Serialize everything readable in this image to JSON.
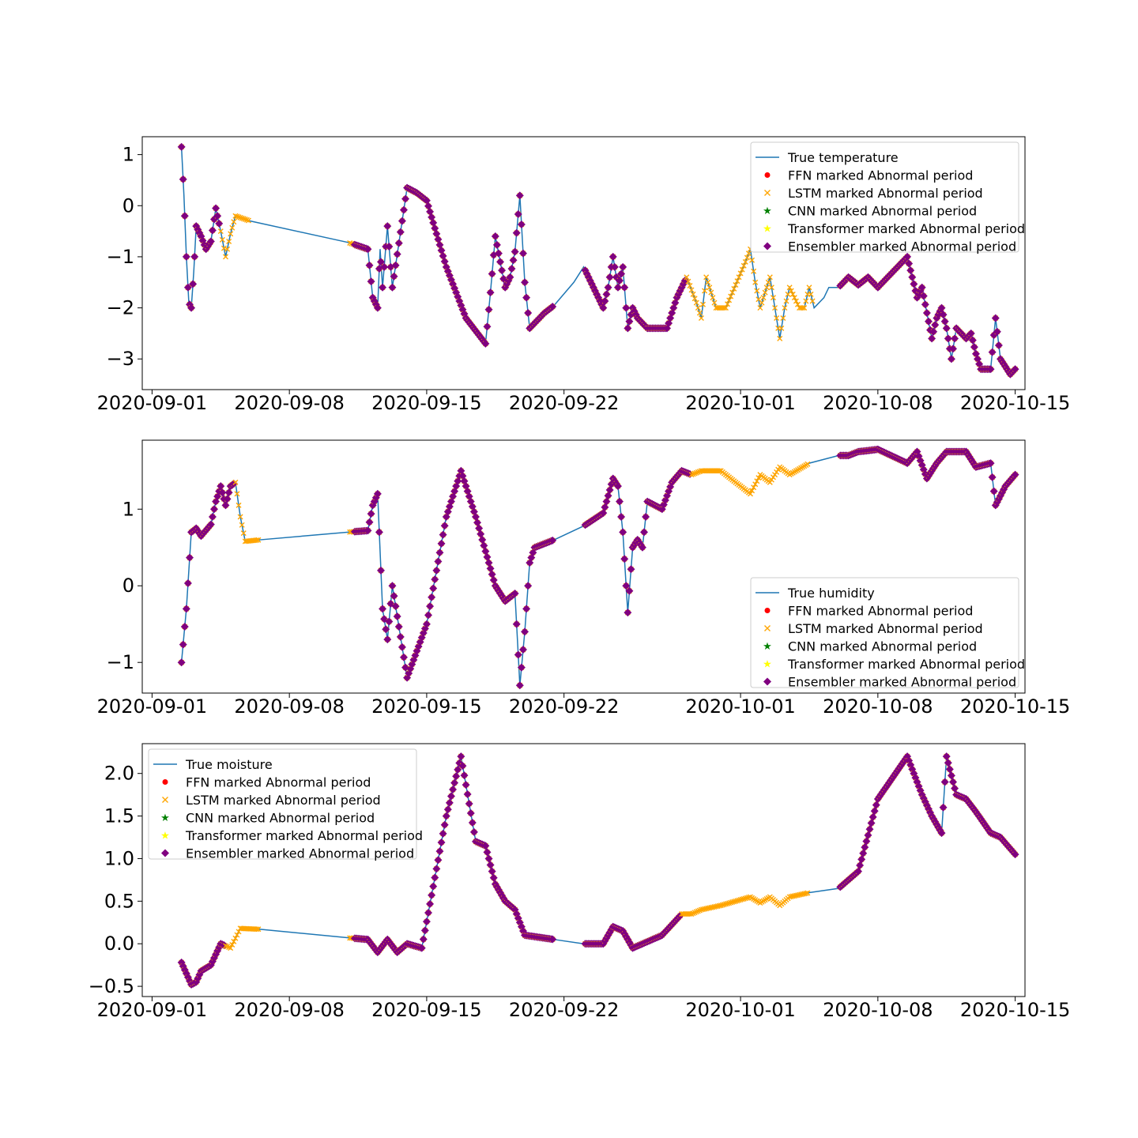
{
  "x_ticks": [
    "2020-09-01",
    "2020-09-08",
    "2020-09-15",
    "2020-09-22",
    "2020-10-01",
    "2020-10-08",
    "2020-10-15"
  ],
  "colors": {
    "true_line": "#1f77b4",
    "ffn": "#ff0000",
    "lstm": "#ffa500",
    "cnn": "#008000",
    "transformer": "#ffff00",
    "ensembler": "#800080"
  },
  "legend_labels": {
    "ffn": "FFN marked Abnormal period",
    "lstm": "LSTM marked Abnormal period",
    "cnn": "CNN marked Abnormal period",
    "transformer": "Transformer marked Abnormal period",
    "ensembler": "Ensembler marked Abnormal period"
  },
  "chart_data": [
    {
      "type": "line",
      "title": "",
      "xlabel": "",
      "ylabel": "",
      "true_label": "True temperature",
      "legend_position": "upper-right",
      "xlim": [
        "2020-08-31T12:00",
        "2020-10-15T12:00"
      ],
      "ylim": [
        -3.6,
        1.35
      ],
      "yticks": [
        "1",
        "0",
        "−1",
        "−2",
        "−3"
      ],
      "ytick_values": [
        1,
        0,
        -1,
        -2,
        -3
      ],
      "series_points": [
        [
          "2020-09-02T12:00",
          1.15
        ],
        [
          "2020-09-02T15:00",
          0.2
        ],
        [
          "2020-09-02T18:00",
          -1.0
        ],
        [
          "2020-09-02T21:00",
          -1.9
        ],
        [
          "2020-09-03T00:00",
          -2.0
        ],
        [
          "2020-09-03T03:00",
          -1.3
        ],
        [
          "2020-09-03T06:00",
          -0.4
        ],
        [
          "2020-09-03T12:00",
          -0.6
        ],
        [
          "2020-09-03T18:00",
          -0.85
        ],
        [
          "2020-09-04T00:00",
          -0.7
        ],
        [
          "2020-09-04T06:00",
          -0.05
        ],
        [
          "2020-09-04T12:00",
          -0.5
        ],
        [
          "2020-09-04T18:00",
          -1.0
        ],
        [
          "2020-09-05T00:00",
          -0.55
        ],
        [
          "2020-09-05T06:00",
          -0.2
        ],
        [
          "2020-09-06T00:00",
          -0.3
        ],
        [
          "2020-09-11T00:00",
          -0.72
        ],
        [
          "2020-09-12T00:00",
          -0.85
        ],
        [
          "2020-09-12T06:00",
          -1.8
        ],
        [
          "2020-09-12T12:00",
          -2.0
        ],
        [
          "2020-09-12T15:00",
          -0.85
        ],
        [
          "2020-09-12T18:00",
          -1.6
        ],
        [
          "2020-09-13T00:00",
          -0.4
        ],
        [
          "2020-09-13T06:00",
          -1.6
        ],
        [
          "2020-09-14T00:00",
          0.35
        ],
        [
          "2020-09-14T12:00",
          0.25
        ],
        [
          "2020-09-15T00:00",
          0.1
        ],
        [
          "2020-09-16T00:00",
          -1.2
        ],
        [
          "2020-09-17T00:00",
          -2.2
        ],
        [
          "2020-09-18T00:00",
          -2.7
        ],
        [
          "2020-09-18T06:00",
          -1.7
        ],
        [
          "2020-09-18T12:00",
          -0.6
        ],
        [
          "2020-09-19T00:00",
          -1.6
        ],
        [
          "2020-09-19T06:00",
          -1.4
        ],
        [
          "2020-09-19T12:00",
          -0.9
        ],
        [
          "2020-09-19T18:00",
          0.2
        ],
        [
          "2020-09-20T00:00",
          -1.5
        ],
        [
          "2020-09-20T06:00",
          -2.4
        ],
        [
          "2020-09-21T00:00",
          -2.1
        ],
        [
          "2020-09-21T12:00",
          -1.95
        ],
        [
          "2020-09-22T12:00",
          -1.5
        ],
        [
          "2020-09-23T00:00",
          -1.2
        ],
        [
          "2020-09-24T00:00",
          -2.0
        ],
        [
          "2020-09-24T06:00",
          -1.6
        ],
        [
          "2020-09-24T12:00",
          -1.0
        ],
        [
          "2020-09-24T18:00",
          -1.6
        ],
        [
          "2020-09-25T00:00",
          -1.2
        ],
        [
          "2020-09-25T06:00",
          -2.4
        ],
        [
          "2020-09-25T12:00",
          -2.0
        ],
        [
          "2020-09-25T18:00",
          -2.2
        ],
        [
          "2020-09-26T06:00",
          -2.4
        ],
        [
          "2020-09-27T06:00",
          -2.4
        ],
        [
          "2020-09-27T18:00",
          -1.8
        ],
        [
          "2020-09-28T06:00",
          -1.4
        ],
        [
          "2020-09-28T18:00",
          -1.9
        ],
        [
          "2020-09-29T00:00",
          -2.2
        ],
        [
          "2020-09-29T06:00",
          -1.4
        ],
        [
          "2020-09-29T18:00",
          -2.0
        ],
        [
          "2020-09-30T06:00",
          -2.0
        ],
        [
          "2020-10-01T06:00",
          -1.1
        ],
        [
          "2020-10-01T12:00",
          -0.85
        ],
        [
          "2020-10-01T18:00",
          -1.5
        ],
        [
          "2020-10-02T00:00",
          -2.0
        ],
        [
          "2020-10-02T12:00",
          -1.4
        ],
        [
          "2020-10-02T18:00",
          -2.0
        ],
        [
          "2020-10-03T00:00",
          -2.6
        ],
        [
          "2020-10-03T06:00",
          -2.0
        ],
        [
          "2020-10-03T12:00",
          -1.6
        ],
        [
          "2020-10-04T00:00",
          -2.0
        ],
        [
          "2020-10-04T06:00",
          -2.0
        ],
        [
          "2020-10-04T12:00",
          -1.6
        ],
        [
          "2020-10-04T18:00",
          -2.0
        ],
        [
          "2020-10-05T06:00",
          -1.8
        ],
        [
          "2020-10-05T12:00",
          -1.6
        ],
        [
          "2020-10-06T00:00",
          -1.6
        ],
        [
          "2020-10-06T12:00",
          -1.4
        ],
        [
          "2020-10-07T00:00",
          -1.55
        ],
        [
          "2020-10-07T12:00",
          -1.4
        ],
        [
          "2020-10-08T00:00",
          -1.6
        ],
        [
          "2020-10-08T12:00",
          -1.4
        ],
        [
          "2020-10-09T12:00",
          -1.0
        ],
        [
          "2020-10-10T00:00",
          -1.8
        ],
        [
          "2020-10-10T06:00",
          -1.6
        ],
        [
          "2020-10-10T12:00",
          -2.1
        ],
        [
          "2020-10-10T18:00",
          -2.6
        ],
        [
          "2020-10-11T00:00",
          -2.2
        ],
        [
          "2020-10-11T06:00",
          -2.0
        ],
        [
          "2020-10-11T12:00",
          -2.4
        ],
        [
          "2020-10-11T18:00",
          -3.0
        ],
        [
          "2020-10-12T00:00",
          -2.4
        ],
        [
          "2020-10-12T12:00",
          -2.6
        ],
        [
          "2020-10-12T18:00",
          -2.5
        ],
        [
          "2020-10-13T00:00",
          -2.9
        ],
        [
          "2020-10-13T06:00",
          -3.2
        ],
        [
          "2020-10-13T18:00",
          -3.2
        ],
        [
          "2020-10-14T00:00",
          -2.2
        ],
        [
          "2020-10-14T06:00",
          -3.0
        ],
        [
          "2020-10-14T18:00",
          -3.3
        ],
        [
          "2020-10-15T00:00",
          -3.2
        ]
      ],
      "gaps": [
        [
          "2020-09-06T00:00",
          "2020-09-11T00:00"
        ],
        [
          "2020-09-21T12:00",
          "2020-09-23T00:00"
        ],
        [
          "2020-10-04T18:00",
          "2020-10-06T00:00"
        ]
      ],
      "lstm_only": [
        [
          "2020-09-04T12:00",
          "2020-09-06T00:00"
        ],
        [
          "2020-09-11T00:00",
          "2020-09-11T06:00"
        ],
        [
          "2020-09-28T06:00",
          "2020-10-04T18:00"
        ]
      ]
    },
    {
      "type": "line",
      "title": "",
      "xlabel": "",
      "ylabel": "",
      "true_label": "True humidity",
      "legend_position": "lower-right",
      "xlim": [
        "2020-08-31T12:00",
        "2020-10-15T12:00"
      ],
      "ylim": [
        -1.4,
        1.9
      ],
      "yticks": [
        "1",
        "0",
        "−1"
      ],
      "ytick_values": [
        1,
        0,
        -1
      ],
      "series_points": [
        [
          "2020-09-02T12:00",
          -1.0
        ],
        [
          "2020-09-02T18:00",
          -0.3
        ],
        [
          "2020-09-03T00:00",
          0.7
        ],
        [
          "2020-09-03T06:00",
          0.75
        ],
        [
          "2020-09-03T12:00",
          0.65
        ],
        [
          "2020-09-04T00:00",
          0.8
        ],
        [
          "2020-09-04T06:00",
          1.1
        ],
        [
          "2020-09-04T12:00",
          1.3
        ],
        [
          "2020-09-04T18:00",
          1.05
        ],
        [
          "2020-09-05T00:00",
          1.3
        ],
        [
          "2020-09-05T06:00",
          1.35
        ],
        [
          "2020-09-05T12:00",
          0.9
        ],
        [
          "2020-09-05T18:00",
          0.58
        ],
        [
          "2020-09-06T12:00",
          0.6
        ],
        [
          "2020-09-11T00:00",
          0.7
        ],
        [
          "2020-09-12T00:00",
          0.72
        ],
        [
          "2020-09-12T06:00",
          1.05
        ],
        [
          "2020-09-12T12:00",
          1.2
        ],
        [
          "2020-09-12T18:00",
          -0.3
        ],
        [
          "2020-09-13T00:00",
          -0.7
        ],
        [
          "2020-09-13T06:00",
          0.0
        ],
        [
          "2020-09-14T00:00",
          -1.2
        ],
        [
          "2020-09-15T00:00",
          -0.5
        ],
        [
          "2020-09-16T00:00",
          0.9
        ],
        [
          "2020-09-16T18:00",
          1.5
        ],
        [
          "2020-09-17T12:00",
          0.9
        ],
        [
          "2020-09-18T12:00",
          0.0
        ],
        [
          "2020-09-19T00:00",
          -0.2
        ],
        [
          "2020-09-19T12:00",
          -0.1
        ],
        [
          "2020-09-19T18:00",
          -1.3
        ],
        [
          "2020-09-20T00:00",
          -0.6
        ],
        [
          "2020-09-20T06:00",
          0.3
        ],
        [
          "2020-09-20T12:00",
          0.5
        ],
        [
          "2020-09-21T12:00",
          0.6
        ],
        [
          "2020-09-23T00:00",
          0.78
        ],
        [
          "2020-09-24T00:00",
          0.95
        ],
        [
          "2020-09-24T12:00",
          1.4
        ],
        [
          "2020-09-24T18:00",
          1.3
        ],
        [
          "2020-09-25T00:00",
          0.7
        ],
        [
          "2020-09-25T06:00",
          -0.35
        ],
        [
          "2020-09-25T12:00",
          0.5
        ],
        [
          "2020-09-25T18:00",
          0.6
        ],
        [
          "2020-09-26T00:00",
          0.5
        ],
        [
          "2020-09-26T06:00",
          1.1
        ],
        [
          "2020-09-27T00:00",
          1.0
        ],
        [
          "2020-09-27T12:00",
          1.35
        ],
        [
          "2020-09-28T00:00",
          1.5
        ],
        [
          "2020-09-28T12:00",
          1.45
        ],
        [
          "2020-09-29T00:00",
          1.5
        ],
        [
          "2020-09-30T00:00",
          1.5
        ],
        [
          "2020-10-01T00:00",
          1.3
        ],
        [
          "2020-10-01T12:00",
          1.2
        ],
        [
          "2020-10-02T00:00",
          1.45
        ],
        [
          "2020-10-02T12:00",
          1.35
        ],
        [
          "2020-10-03T00:00",
          1.55
        ],
        [
          "2020-10-03T12:00",
          1.45
        ],
        [
          "2020-10-04T12:00",
          1.6
        ],
        [
          "2020-10-06T00:00",
          1.7
        ],
        [
          "2020-10-06T12:00",
          1.7
        ],
        [
          "2020-10-07T00:00",
          1.75
        ],
        [
          "2020-10-08T00:00",
          1.78
        ],
        [
          "2020-10-09T12:00",
          1.6
        ],
        [
          "2020-10-10T00:00",
          1.75
        ],
        [
          "2020-10-10T12:00",
          1.4
        ],
        [
          "2020-10-11T00:00",
          1.6
        ],
        [
          "2020-10-11T12:00",
          1.75
        ],
        [
          "2020-10-12T12:00",
          1.75
        ],
        [
          "2020-10-13T00:00",
          1.55
        ],
        [
          "2020-10-13T18:00",
          1.6
        ],
        [
          "2020-10-14T00:00",
          1.05
        ],
        [
          "2020-10-14T12:00",
          1.3
        ],
        [
          "2020-10-15T00:00",
          1.45
        ]
      ],
      "gaps": [
        [
          "2020-09-06T12:00",
          "2020-09-11T00:00"
        ],
        [
          "2020-09-21T12:00",
          "2020-09-23T00:00"
        ],
        [
          "2020-10-04T12:00",
          "2020-10-06T00:00"
        ]
      ],
      "lstm_only": [
        [
          "2020-09-05T06:00",
          "2020-09-06T12:00"
        ],
        [
          "2020-09-11T00:00",
          "2020-09-11T06:00"
        ],
        [
          "2020-09-28T12:00",
          "2020-10-04T12:00"
        ]
      ]
    },
    {
      "type": "line",
      "title": "",
      "xlabel": "",
      "ylabel": "",
      "true_label": "True moisture",
      "legend_position": "upper-left",
      "xlim": [
        "2020-08-31T12:00",
        "2020-10-15T12:00"
      ],
      "ylim": [
        -0.62,
        2.35
      ],
      "yticks": [
        "2.0",
        "1.5",
        "1.0",
        "0.5",
        "0.0",
        "−0.5"
      ],
      "ytick_values": [
        2.0,
        1.5,
        1.0,
        0.5,
        0.0,
        -0.5
      ],
      "series_points": [
        [
          "2020-09-02T12:00",
          -0.22
        ],
        [
          "2020-09-03T00:00",
          -0.48
        ],
        [
          "2020-09-03T06:00",
          -0.45
        ],
        [
          "2020-09-03T12:00",
          -0.32
        ],
        [
          "2020-09-04T00:00",
          -0.25
        ],
        [
          "2020-09-04T12:00",
          0.0
        ],
        [
          "2020-09-05T00:00",
          -0.05
        ],
        [
          "2020-09-05T12:00",
          0.18
        ],
        [
          "2020-09-06T12:00",
          0.17
        ],
        [
          "2020-09-11T00:00",
          0.07
        ],
        [
          "2020-09-12T00:00",
          0.05
        ],
        [
          "2020-09-12T12:00",
          -0.1
        ],
        [
          "2020-09-13T00:00",
          0.05
        ],
        [
          "2020-09-13T12:00",
          -0.1
        ],
        [
          "2020-09-14T00:00",
          0.0
        ],
        [
          "2020-09-14T18:00",
          -0.05
        ],
        [
          "2020-09-16T00:00",
          1.5
        ],
        [
          "2020-09-16T18:00",
          2.2
        ],
        [
          "2020-09-17T12:00",
          1.2
        ],
        [
          "2020-09-18T00:00",
          1.15
        ],
        [
          "2020-09-18T12:00",
          0.7
        ],
        [
          "2020-09-19T00:00",
          0.5
        ],
        [
          "2020-09-19T12:00",
          0.4
        ],
        [
          "2020-09-20T00:00",
          0.1
        ],
        [
          "2020-09-21T12:00",
          0.05
        ],
        [
          "2020-09-23T00:00",
          0.0
        ],
        [
          "2020-09-24T00:00",
          0.0
        ],
        [
          "2020-09-24T12:00",
          0.2
        ],
        [
          "2020-09-25T00:00",
          0.15
        ],
        [
          "2020-09-25T12:00",
          -0.05
        ],
        [
          "2020-09-26T00:00",
          0.0
        ],
        [
          "2020-09-27T00:00",
          0.1
        ],
        [
          "2020-09-28T00:00",
          0.35
        ],
        [
          "2020-09-28T12:00",
          0.35
        ],
        [
          "2020-09-29T00:00",
          0.4
        ],
        [
          "2020-09-30T00:00",
          0.45
        ],
        [
          "2020-10-01T12:00",
          0.55
        ],
        [
          "2020-10-02T00:00",
          0.48
        ],
        [
          "2020-10-02T12:00",
          0.55
        ],
        [
          "2020-10-03T00:00",
          0.45
        ],
        [
          "2020-10-03T12:00",
          0.55
        ],
        [
          "2020-10-04T12:00",
          0.6
        ],
        [
          "2020-10-06T00:00",
          0.65
        ],
        [
          "2020-10-07T00:00",
          0.85
        ],
        [
          "2020-10-08T00:00",
          1.7
        ],
        [
          "2020-10-09T12:00",
          2.2
        ],
        [
          "2020-10-10T06:00",
          1.75
        ],
        [
          "2020-10-10T18:00",
          1.5
        ],
        [
          "2020-10-11T06:00",
          1.3
        ],
        [
          "2020-10-11T12:00",
          2.2
        ],
        [
          "2020-10-12T00:00",
          1.75
        ],
        [
          "2020-10-12T12:00",
          1.7
        ],
        [
          "2020-10-13T00:00",
          1.55
        ],
        [
          "2020-10-13T18:00",
          1.3
        ],
        [
          "2020-10-14T06:00",
          1.25
        ],
        [
          "2020-10-15T00:00",
          1.05
        ]
      ],
      "gaps": [
        [
          "2020-09-06T12:00",
          "2020-09-11T00:00"
        ],
        [
          "2020-09-21T12:00",
          "2020-09-23T00:00"
        ],
        [
          "2020-10-04T12:00",
          "2020-10-06T00:00"
        ]
      ],
      "lstm_only": [
        [
          "2020-09-04T18:00",
          "2020-09-06T12:00"
        ],
        [
          "2020-09-11T00:00",
          "2020-09-11T06:00"
        ],
        [
          "2020-09-28T00:00",
          "2020-10-04T12:00"
        ]
      ]
    }
  ]
}
